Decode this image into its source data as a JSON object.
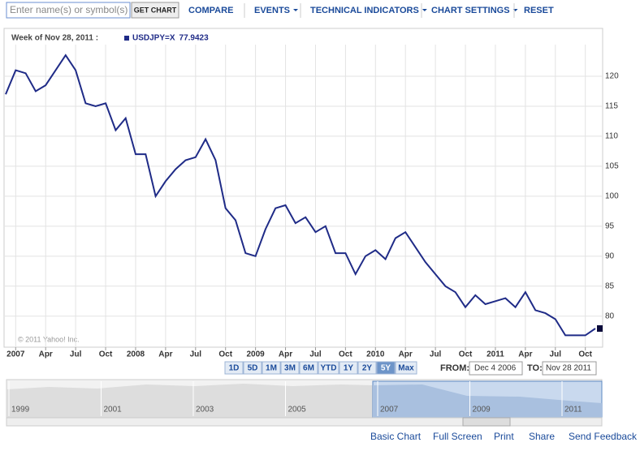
{
  "toolbar": {
    "search_placeholder": "Enter name(s) or symbol(s)",
    "get_chart": "GET CHART",
    "menu": [
      {
        "label": "COMPARE",
        "dropdown": false
      },
      {
        "label": "EVENTS",
        "dropdown": true
      },
      {
        "label": "TECHNICAL INDICATORS",
        "dropdown": true
      },
      {
        "label": "CHART SETTINGS",
        "dropdown": true
      },
      {
        "label": "RESET",
        "dropdown": false
      }
    ]
  },
  "chart_data": {
    "type": "line",
    "header": "Week of Nov 28, 2011 :",
    "copyright": "© 2011 Yahoo! Inc.",
    "x": [
      "2006-12",
      "2007-01",
      "2007-02",
      "2007-03",
      "2007-04",
      "2007-05",
      "2007-06",
      "2007-07",
      "2007-08",
      "2007-09",
      "2007-10",
      "2007-11",
      "2007-12",
      "2008-01",
      "2008-02",
      "2008-03",
      "2008-04",
      "2008-05",
      "2008-06",
      "2008-07",
      "2008-08",
      "2008-09",
      "2008-10",
      "2008-11",
      "2008-12",
      "2009-01",
      "2009-02",
      "2009-03",
      "2009-04",
      "2009-05",
      "2009-06",
      "2009-07",
      "2009-08",
      "2009-09",
      "2009-10",
      "2009-11",
      "2009-12",
      "2010-01",
      "2010-02",
      "2010-03",
      "2010-04",
      "2010-05",
      "2010-06",
      "2010-07",
      "2010-08",
      "2010-09",
      "2010-10",
      "2010-11",
      "2010-12",
      "2011-01",
      "2011-02",
      "2011-03",
      "2011-04",
      "2011-05",
      "2011-06",
      "2011-07",
      "2011-08",
      "2011-09",
      "2011-10",
      "2011-11"
    ],
    "series": [
      {
        "name": "USDJPY=X",
        "color": "#1f2b87",
        "values": [
          117,
          121,
          120.5,
          117.5,
          118.5,
          121,
          123.5,
          121,
          115.5,
          115,
          115.5,
          111,
          113,
          107,
          107,
          100,
          102.5,
          104.5,
          106,
          106.5,
          109.5,
          106,
          98,
          96,
          90.5,
          90,
          94.5,
          98,
          98.5,
          95.5,
          96.5,
          94,
          95,
          90.5,
          90.5,
          87,
          90,
          91,
          89.5,
          93,
          94,
          91.5,
          89,
          87,
          85,
          84,
          81.5,
          83.5,
          82,
          82.5,
          83,
          81.5,
          84,
          81,
          80.5,
          79.5,
          76.8,
          76.8,
          76.8,
          77.9423
        ]
      }
    ],
    "xlim": [
      "2006-12",
      "2011-11"
    ],
    "xticks": [
      {
        "value": "2007-01",
        "label": "2007"
      },
      {
        "value": "2007-04",
        "label": "Apr"
      },
      {
        "value": "2007-07",
        "label": "Jul"
      },
      {
        "value": "2007-10",
        "label": "Oct"
      },
      {
        "value": "2008-01",
        "label": "2008"
      },
      {
        "value": "2008-04",
        "label": "Apr"
      },
      {
        "value": "2008-07",
        "label": "Jul"
      },
      {
        "value": "2008-10",
        "label": "Oct"
      },
      {
        "value": "2009-01",
        "label": "2009"
      },
      {
        "value": "2009-04",
        "label": "Apr"
      },
      {
        "value": "2009-07",
        "label": "Jul"
      },
      {
        "value": "2009-10",
        "label": "Oct"
      },
      {
        "value": "2010-01",
        "label": "2010"
      },
      {
        "value": "2010-04",
        "label": "Apr"
      },
      {
        "value": "2010-07",
        "label": "Jul"
      },
      {
        "value": "2010-10",
        "label": "Oct"
      },
      {
        "value": "2011-01",
        "label": "2011"
      },
      {
        "value": "2011-04",
        "label": "Apr"
      },
      {
        "value": "2011-07",
        "label": "Jul"
      },
      {
        "value": "2011-10",
        "label": "Oct"
      }
    ],
    "ylim": [
      75.1,
      127.3
    ],
    "yticks": [
      80,
      85,
      90,
      95,
      100,
      105,
      110,
      115,
      120
    ],
    "grid": true
  },
  "range_buttons": [
    "1D",
    "5D",
    "1M",
    "3M",
    "6M",
    "YTD",
    "1Y",
    "2Y",
    "5Y",
    "Max"
  ],
  "active_range": "5Y",
  "from_label": "FROM:",
  "from_date": "Dec 4 2006",
  "to_label": "TO:",
  "to_date": "Nov 28 2011",
  "navigator_years": [
    "1999",
    "2001",
    "2003",
    "2005",
    "2007",
    "2009",
    "2011"
  ],
  "footer_links": [
    "Basic Chart",
    "Full Screen",
    "Print",
    "Share",
    "Send Feedback"
  ]
}
